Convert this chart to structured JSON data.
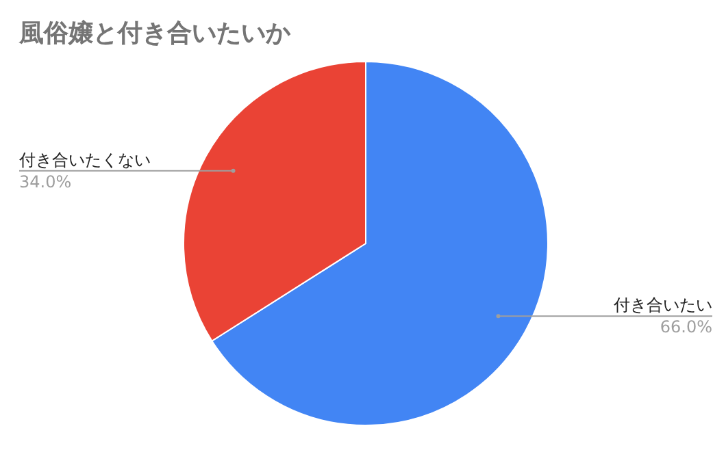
{
  "chart_data": {
    "type": "pie",
    "title": "風俗嬢と付き合いたいか",
    "categories": [
      "付き合いたい",
      "付き合いたくない"
    ],
    "values": [
      66.0,
      34.0
    ],
    "colors": [
      "#4285f4",
      "#ea4335"
    ],
    "value_labels": [
      "66.0%",
      "34.0%"
    ]
  }
}
